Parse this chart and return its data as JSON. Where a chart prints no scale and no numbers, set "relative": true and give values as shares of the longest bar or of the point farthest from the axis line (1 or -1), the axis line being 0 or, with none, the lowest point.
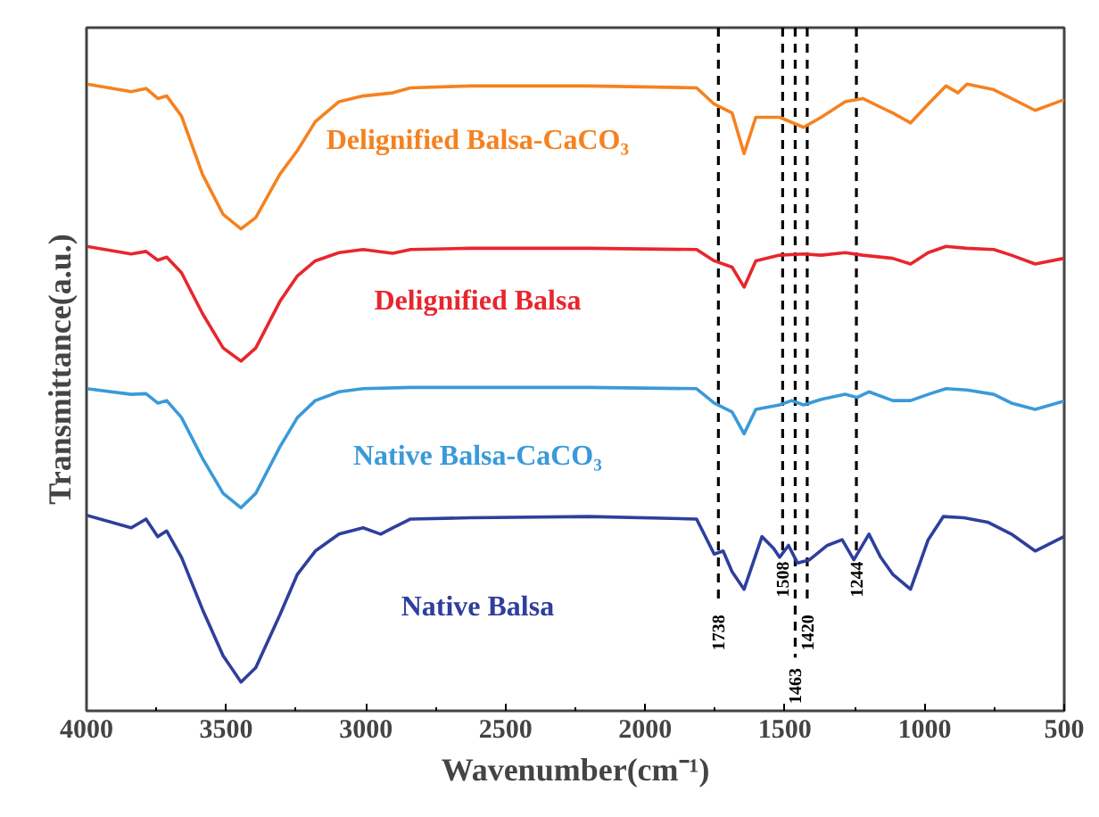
{
  "chart_data": {
    "type": "line",
    "relative": true,
    "xlabel": "Wavenumber(cm⁻¹)",
    "ylabel": "Transmittance(a.u.)",
    "xlim": [
      4000,
      500
    ],
    "xticks": [
      4000,
      3500,
      3000,
      2500,
      2000,
      1500,
      1000,
      500
    ],
    "grid": false,
    "tick_labels": "x",
    "series": [
      {
        "name": "Delignified Balsa-CaCO₃",
        "color": "#f5821f",
        "x": [
          4000,
          3840,
          3787,
          3745,
          3713,
          3660,
          3585,
          3511,
          3447,
          3394,
          3308,
          3245,
          3181,
          3096,
          3010,
          2904,
          2840,
          2627,
          2202,
          1816,
          1753,
          1689,
          1646,
          1604,
          1519,
          1433,
          1370,
          1284,
          1221,
          1157,
          1114,
          1050,
          987,
          923,
          880,
          848,
          752,
          689,
          604,
          501
        ],
        "values": [
          1.0,
          0.988,
          0.993,
          0.977,
          0.981,
          0.949,
          0.856,
          0.792,
          0.769,
          0.787,
          0.856,
          0.894,
          0.94,
          0.972,
          0.981,
          0.986,
          0.994,
          0.997,
          0.997,
          0.994,
          0.968,
          0.954,
          0.889,
          0.947,
          0.947,
          0.931,
          0.947,
          0.972,
          0.977,
          0.963,
          0.954,
          0.938,
          0.968,
          0.997,
          0.986,
          1.0,
          0.991,
          0.977,
          0.958,
          0.975
        ]
      },
      {
        "name": "Delignified Balsa",
        "color": "#e8262e",
        "x": [
          4000,
          3840,
          3787,
          3745,
          3713,
          3660,
          3585,
          3511,
          3447,
          3394,
          3308,
          3245,
          3181,
          3096,
          3010,
          2904,
          2840,
          2627,
          2202,
          1816,
          1753,
          1689,
          1646,
          1604,
          1519,
          1433,
          1370,
          1284,
          1221,
          1114,
          1050,
          987,
          923,
          848,
          752,
          689,
          604,
          501
        ],
        "values": [
          0.741,
          0.729,
          0.733,
          0.719,
          0.724,
          0.699,
          0.634,
          0.579,
          0.558,
          0.579,
          0.653,
          0.694,
          0.718,
          0.731,
          0.736,
          0.73,
          0.736,
          0.738,
          0.738,
          0.736,
          0.718,
          0.708,
          0.676,
          0.718,
          0.727,
          0.729,
          0.727,
          0.731,
          0.727,
          0.722,
          0.713,
          0.731,
          0.741,
          0.738,
          0.736,
          0.727,
          0.713,
          0.722
        ]
      },
      {
        "name": "Native Balsa-CaCO₃",
        "color": "#3a9ad9",
        "x": [
          4000,
          3840,
          3787,
          3745,
          3713,
          3660,
          3585,
          3511,
          3447,
          3394,
          3308,
          3245,
          3181,
          3096,
          3010,
          2840,
          2202,
          1816,
          1753,
          1689,
          1646,
          1604,
          1519,
          1476,
          1433,
          1370,
          1284,
          1242,
          1199,
          1114,
          1050,
          987,
          923,
          848,
          752,
          689,
          604,
          501
        ],
        "values": [
          0.514,
          0.505,
          0.506,
          0.491,
          0.495,
          0.468,
          0.403,
          0.347,
          0.324,
          0.347,
          0.421,
          0.468,
          0.495,
          0.509,
          0.514,
          0.516,
          0.516,
          0.514,
          0.491,
          0.477,
          0.442,
          0.481,
          0.488,
          0.495,
          0.488,
          0.497,
          0.505,
          0.5,
          0.509,
          0.495,
          0.495,
          0.505,
          0.514,
          0.512,
          0.505,
          0.491,
          0.481,
          0.494
        ]
      },
      {
        "name": "Native Balsa",
        "color": "#2e3f9c",
        "x": [
          4000,
          3840,
          3787,
          3745,
          3713,
          3660,
          3585,
          3511,
          3447,
          3394,
          3308,
          3245,
          3181,
          3096,
          3010,
          2947,
          2904,
          2840,
          2627,
          2202,
          1816,
          1753,
          1721,
          1689,
          1646,
          1582,
          1540,
          1519,
          1487,
          1455,
          1412,
          1348,
          1295,
          1253,
          1199,
          1157,
          1114,
          1050,
          987,
          933,
          859,
          774,
          689,
          604,
          501
        ],
        "values": [
          0.312,
          0.292,
          0.306,
          0.278,
          0.287,
          0.245,
          0.162,
          0.088,
          0.046,
          0.069,
          0.153,
          0.218,
          0.255,
          0.282,
          0.292,
          0.282,
          0.292,
          0.306,
          0.308,
          0.31,
          0.306,
          0.25,
          0.255,
          0.222,
          0.194,
          0.278,
          0.259,
          0.245,
          0.264,
          0.236,
          0.241,
          0.264,
          0.273,
          0.241,
          0.282,
          0.245,
          0.218,
          0.194,
          0.273,
          0.31,
          0.308,
          0.301,
          0.282,
          0.255,
          0.278
        ]
      }
    ],
    "ref_lines": [
      {
        "axis": "x",
        "value": 1738,
        "label": "1738",
        "line_style": "dashed",
        "color": "#000000"
      },
      {
        "axis": "x",
        "value": 1508,
        "label": "1508",
        "line_style": "dashed",
        "color": "#000000"
      },
      {
        "axis": "x",
        "value": 1463,
        "label": "1463",
        "line_style": "dashed",
        "color": "#000000"
      },
      {
        "axis": "x",
        "value": 1420,
        "label": "1420",
        "line_style": "dashed",
        "color": "#000000"
      },
      {
        "axis": "x",
        "value": 1244,
        "label": "1244",
        "line_style": "dashed",
        "color": "#000000"
      }
    ]
  }
}
